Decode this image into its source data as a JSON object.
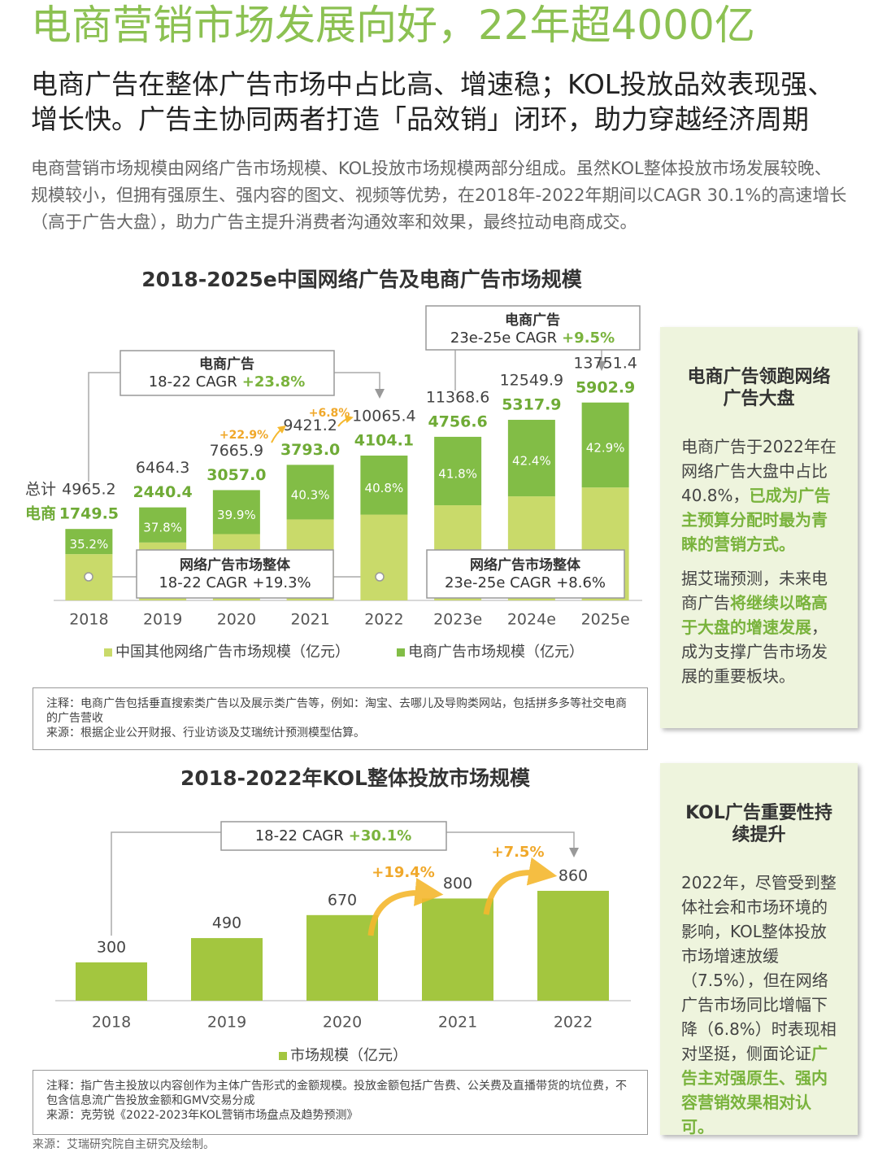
{
  "header": {
    "title": "电商营销市场发展向好，22年超4000亿",
    "subtitle": "电商广告在整体广告市场中占比高、增速稳；KOL投放品效表现强、增长快。广告主协同两者打造「品效销」闭环，助力穿越经济周期",
    "intro": "电商营销市场规模由网络广告市场规模、KOL投放市场规模两部分组成。虽然KOL整体投放市场发展较晚、规模较小，但拥有强原生、强内容的图文、视频等优势，在2018年-2022年期间以CAGR 30.1%的高速增长（高于广告大盘），助力广告主提升消费者沟通效率和效果，最终拉动电商成交。"
  },
  "chart_data": [
    {
      "type": "stacked_bar",
      "title": "2018-2025e中国网络广告及电商广告市场规模",
      "categories": [
        "2018",
        "2019",
        "2020",
        "2021",
        "2022",
        "2023e",
        "2024e",
        "2025e"
      ],
      "series": [
        {
          "name": "中国其他网络广告市场规模（亿元）",
          "color": "#c9da6a",
          "values": [
            3215.7,
            4023.9,
            4608.9,
            5628.2,
            5961.3,
            6612,
            7232,
            7848.5
          ]
        },
        {
          "name": "电商广告市场规模（亿元）",
          "color": "#82bd46",
          "values": [
            1749.5,
            2440.4,
            3057,
            3793,
            4104.1,
            4756.6,
            5317.9,
            5902.9
          ],
          "value_labels": [
            "1749.5",
            "2440.4",
            "3057.0",
            "3793.0",
            "4104.1",
            "4756.6",
            "5317.9",
            "5902.9"
          ],
          "shares": [
            "35.2%",
            "37.8%",
            "39.9%",
            "40.3%",
            "40.8%",
            "41.8%",
            "42.4%",
            "42.9%"
          ]
        }
      ],
      "totals": [
        4965.2,
        6464.3,
        7665.9,
        9421.2,
        10065.4,
        11368.6,
        12549.9,
        13751.4
      ],
      "total_label": "总计",
      "series_label": "电商",
      "ylim": [
        0,
        16000
      ],
      "growth": [
        "+22.9%",
        "+6.8%"
      ],
      "cagr_boxes": [
        {
          "title": "电商广告",
          "label": "18-22 CAGR",
          "value": "+23.8%"
        },
        {
          "title": "电商广告",
          "label": "23e-25e CAGR",
          "value": "+9.5%"
        },
        {
          "title": "网络广告市场整体",
          "label": "18-22 CAGR",
          "value": "+19.3%"
        },
        {
          "title": "网络广告市场整体",
          "label": "23e-25e CAGR",
          "value": "+8.6%"
        }
      ]
    },
    {
      "type": "bar",
      "title": "2018-2022年KOL整体投放市场规模",
      "categories": [
        "2018",
        "2019",
        "2020",
        "2021",
        "2022"
      ],
      "series": [
        {
          "name": "市场规模（亿元）",
          "color": "#a3c63f",
          "values": [
            300,
            490,
            670,
            800,
            860
          ]
        }
      ],
      "ylim": [
        0,
        1000
      ],
      "growth": [
        "+19.4%",
        "+7.5%"
      ],
      "cagr_boxes": [
        {
          "label": "18-22 CAGR",
          "value": "+30.1%"
        }
      ]
    }
  ],
  "notes": [
    {
      "note": "注释：电商广告包括垂直搜索类广告以及展示类广告等，例如：淘宝、去哪儿及导购类网站，包括拼多多等社交电商的广告营收",
      "source": "来源：根据企业公开财报、行业访谈及艾瑞统计预测模型估算。"
    },
    {
      "note": "注释：指广告主投放以内容创作为主体广告形式的金额规模。投放金额包括广告费、公关费及直播带货的坑位费，不包含信息流广告投放金额和GMV交易分成",
      "source": "来源：克劳锐《2022-2023年KOL营销市场盘点及趋势预测》"
    }
  ],
  "sidebar": [
    {
      "title": "电商广告领跑网络广告大盘",
      "paragraphs": [
        {
          "plain": "电商广告于2022年在网络广告大盘中占比40.8%，",
          "highlight": "已成为广告主预算分配时最为青睐的营销方式。"
        },
        {
          "plain": "据艾瑞预测，未来电商广告",
          "highlight": "将继续以略高于大盘的增速发展",
          "tail": "，成为支撑广告市场发展的重要板块。"
        }
      ]
    },
    {
      "title": "KOL广告重要性持续提升",
      "paragraphs": [
        {
          "plain": "2022年，尽管受到整体社会和市场环境的影响，KOL整体投放市场增速放缓（7.5%），但在网络广告市场同比增幅下降（6.8%）时表现相对坚挺，侧面论证",
          "highlight": "广告主对强原生、强内容营销效果相对认可。"
        }
      ]
    }
  ],
  "footer": "来源：艾瑞研究院自主研究及绘制。"
}
